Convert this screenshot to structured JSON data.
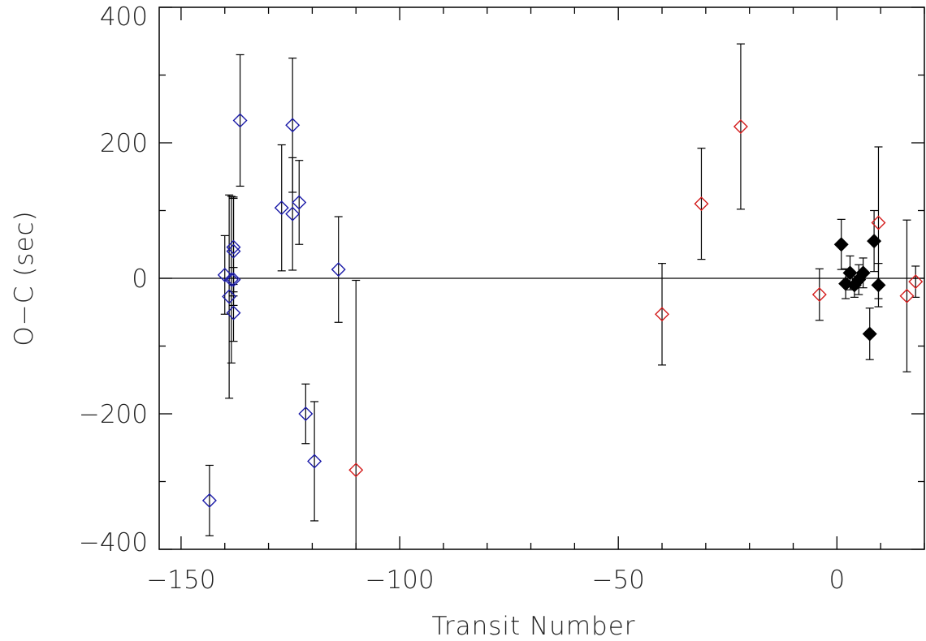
{
  "chart_data": {
    "type": "scatter",
    "title": "",
    "xlabel": "Transit Number",
    "ylabel": "O−C (sec)",
    "xlim": [
      -155,
      20
    ],
    "ylim": [
      -400,
      400
    ],
    "x_ticks": [
      -150,
      -100,
      -50,
      0
    ],
    "x_tick_labels": [
      "−150",
      "−100",
      "−50",
      "0"
    ],
    "x_minor_step": 10,
    "y_ticks": [
      -400,
      -200,
      0,
      200,
      400
    ],
    "y_tick_labels": [
      "−400",
      "−200",
      "0",
      "200",
      "400"
    ],
    "y_minor_step": 100,
    "reference_line_y": 0,
    "grid": false,
    "legend": "none",
    "series": [
      {
        "marker": "open-diamond",
        "color": "#1a1aa8",
        "points": [
          {
            "x": -143.5,
            "y": -328,
            "err": 52
          },
          {
            "x": -140.0,
            "y": 5,
            "err": 58
          },
          {
            "x": -139.0,
            "y": -27,
            "err": 150
          },
          {
            "x": -138.5,
            "y": -2,
            "err": 123
          },
          {
            "x": -138.0,
            "y": 40,
            "err": 80
          },
          {
            "x": -138.0,
            "y": 46,
            "err": 72
          },
          {
            "x": -138.0,
            "y": -2,
            "err": 18
          },
          {
            "x": -138.0,
            "y": -51,
            "err": 42
          },
          {
            "x": -136.5,
            "y": 233,
            "err": 97
          },
          {
            "x": -127.0,
            "y": 104,
            "err": 93
          },
          {
            "x": -124.5,
            "y": 226,
            "err": 99
          },
          {
            "x": -124.5,
            "y": 95,
            "err": 83
          },
          {
            "x": -123.0,
            "y": 112,
            "err": 62
          },
          {
            "x": -121.5,
            "y": -200,
            "err": 44
          },
          {
            "x": -119.5,
            "y": -270,
            "err": 88
          },
          {
            "x": -114.0,
            "y": 13,
            "err": 78
          }
        ]
      },
      {
        "marker": "open-diamond",
        "color": "#d41c1c",
        "points": [
          {
            "x": -110.0,
            "y": -283,
            "err": 280
          },
          {
            "x": -40.0,
            "y": -53,
            "err": 75
          },
          {
            "x": -31.0,
            "y": 110,
            "err": 82
          },
          {
            "x": -22.0,
            "y": 224,
            "err": 122
          },
          {
            "x": -4.0,
            "y": -24,
            "err": 38
          },
          {
            "x": 9.5,
            "y": 82,
            "err": 112
          },
          {
            "x": 16.0,
            "y": -26,
            "err": 112
          },
          {
            "x": 18.0,
            "y": -5,
            "err": 23
          }
        ]
      },
      {
        "marker": "filled-diamond",
        "color": "#000000",
        "points": [
          {
            "x": 1.0,
            "y": 50,
            "err": 37
          },
          {
            "x": 2.0,
            "y": -8,
            "err": 22
          },
          {
            "x": 3.0,
            "y": 8,
            "err": 25
          },
          {
            "x": 4.0,
            "y": -10,
            "err": 18
          },
          {
            "x": 5.0,
            "y": -2,
            "err": 22
          },
          {
            "x": 6.0,
            "y": 8,
            "err": 22
          },
          {
            "x": 7.5,
            "y": -82,
            "err": 38
          },
          {
            "x": 8.5,
            "y": 55,
            "err": 45
          },
          {
            "x": 9.5,
            "y": -10,
            "err": 32
          }
        ]
      }
    ]
  }
}
